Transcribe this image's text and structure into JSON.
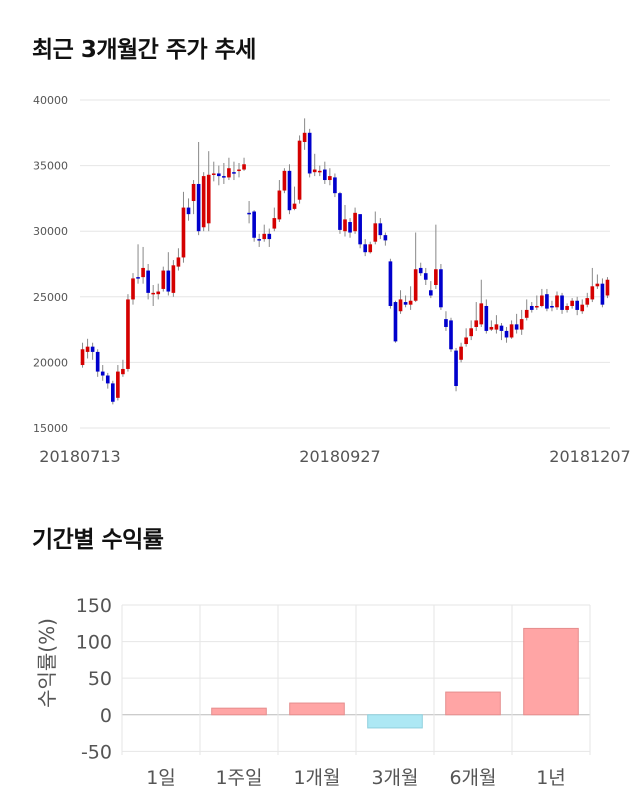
{
  "sections": {
    "price_title": "최근 3개월간 주가 추세",
    "returns_title": "기간별 수익률"
  },
  "chart_data": [
    {
      "type": "candlestick",
      "title": "최근 3개월간 주가 추세",
      "ylim": [
        15000,
        40000
      ],
      "y_ticks": [
        "40000",
        "35000",
        "30000",
        "25000",
        "20000",
        "15000"
      ],
      "x_ticks": [
        "20180713",
        "20180927",
        "20181207"
      ],
      "grid": true,
      "colors": {
        "up": "#d40000",
        "down": "#0000cc",
        "wick": "#888888"
      },
      "candles": [
        [
          19800,
          21000,
          21500,
          19600
        ],
        [
          20800,
          21200,
          21800,
          20300
        ],
        [
          21200,
          20800,
          21500,
          20200
        ],
        [
          20800,
          19300,
          21000,
          18900
        ],
        [
          19300,
          19000,
          19800,
          18600
        ],
        [
          19000,
          18400,
          19200,
          18000
        ],
        [
          18400,
          17000,
          18600,
          16800
        ],
        [
          17300,
          19300,
          19800,
          17100
        ],
        [
          19100,
          19500,
          20200,
          18900
        ],
        [
          19500,
          24800,
          25200,
          19300
        ],
        [
          24800,
          26400,
          26800,
          24400
        ],
        [
          26500,
          26400,
          29000,
          26000
        ],
        [
          26500,
          27200,
          28800,
          26000
        ],
        [
          27000,
          25300,
          27500,
          24800
        ],
        [
          25200,
          25300,
          25900,
          24300
        ],
        [
          25200,
          25400,
          26000,
          24800
        ],
        [
          25600,
          27000,
          27300,
          25400
        ],
        [
          27000,
          25400,
          28400,
          25100
        ],
        [
          25300,
          27400,
          27800,
          25000
        ],
        [
          27300,
          28000,
          28700,
          27000
        ],
        [
          28000,
          31800,
          33000,
          27600
        ],
        [
          31800,
          31300,
          32500,
          30800
        ],
        [
          32300,
          33600,
          33900,
          31300
        ],
        [
          33600,
          30000,
          36800,
          29700
        ],
        [
          30300,
          34200,
          34500,
          30000
        ],
        [
          30600,
          34300,
          36100,
          30000
        ],
        [
          34400,
          34400,
          35300,
          33800
        ],
        [
          34400,
          34200,
          35000,
          33500
        ],
        [
          34200,
          34100,
          35200,
          33600
        ],
        [
          34100,
          34800,
          35600,
          33900
        ],
        [
          34500,
          34400,
          35300,
          33900
        ],
        [
          34600,
          34700,
          35200,
          34100
        ],
        [
          34700,
          35100,
          35600,
          34600
        ],
        [
          31400,
          31300,
          32300,
          30600
        ],
        [
          31500,
          29500,
          31600,
          29200
        ],
        [
          29400,
          29300,
          29800,
          28800
        ],
        [
          29400,
          29800,
          30500,
          29200
        ],
        [
          29800,
          29400,
          30200,
          28800
        ],
        [
          30200,
          31000,
          31800,
          30000
        ],
        [
          30900,
          33100,
          33900,
          30700
        ],
        [
          33100,
          34600,
          34800,
          32900
        ],
        [
          34600,
          31600,
          35100,
          31300
        ],
        [
          31700,
          32100,
          33400,
          31600
        ],
        [
          32400,
          36900,
          37300,
          32100
        ],
        [
          36800,
          37500,
          38600,
          36200
        ],
        [
          37500,
          34400,
          37800,
          34100
        ],
        [
          34500,
          34700,
          35900,
          34200
        ],
        [
          34600,
          34600,
          35000,
          34200
        ],
        [
          34700,
          33900,
          35300,
          33600
        ],
        [
          33900,
          34200,
          34800,
          33500
        ],
        [
          34100,
          32900,
          34400,
          32600
        ],
        [
          32900,
          30100,
          33000,
          29800
        ],
        [
          30000,
          30900,
          32000,
          29600
        ],
        [
          30700,
          29900,
          31000,
          29500
        ],
        [
          30000,
          31400,
          31800,
          29800
        ],
        [
          31300,
          29000,
          31300,
          28700
        ],
        [
          29000,
          28400,
          29400,
          28100
        ],
        [
          28400,
          29000,
          29200,
          28300
        ],
        [
          29200,
          30600,
          31500,
          29000
        ],
        [
          30600,
          29700,
          31000,
          29400
        ],
        [
          29700,
          29300,
          29900,
          28900
        ],
        [
          27700,
          24300,
          27900,
          24100
        ],
        [
          24600,
          21600,
          24700,
          21500
        ],
        [
          23900,
          24800,
          25500,
          23700
        ],
        [
          24600,
          24400,
          25100,
          24200
        ],
        [
          24400,
          24700,
          25800,
          24000
        ],
        [
          24700,
          27100,
          29900,
          24600
        ],
        [
          27200,
          26800,
          27600,
          26600
        ],
        [
          26800,
          26300,
          27200,
          25900
        ],
        [
          25500,
          25100,
          26200,
          24900
        ],
        [
          25900,
          27100,
          30500,
          25600
        ],
        [
          27100,
          24200,
          27500,
          24000
        ],
        [
          23300,
          22700,
          23900,
          22400
        ],
        [
          23200,
          21000,
          23400,
          20800
        ],
        [
          20900,
          18200,
          21100,
          17800
        ],
        [
          20200,
          21200,
          21500,
          20000
        ],
        [
          21400,
          21900,
          22600,
          21200
        ],
        [
          22000,
          22600,
          23200,
          21700
        ],
        [
          22700,
          23200,
          24600,
          22400
        ],
        [
          22900,
          24500,
          26300,
          22700
        ],
        [
          24300,
          22400,
          24800,
          22200
        ],
        [
          22500,
          22700,
          23200,
          22400
        ],
        [
          22500,
          22900,
          23600,
          22200
        ],
        [
          22800,
          22400,
          23000,
          21700
        ],
        [
          22400,
          21900,
          22700,
          21500
        ],
        [
          21900,
          22900,
          23200,
          21800
        ],
        [
          22900,
          22500,
          23700,
          22200
        ],
        [
          22500,
          23300,
          24000,
          22100
        ],
        [
          23400,
          24000,
          24800,
          23200
        ],
        [
          24300,
          24000,
          24600,
          23800
        ],
        [
          24200,
          24300,
          25100,
          24000
        ],
        [
          24300,
          25100,
          25600,
          24200
        ],
        [
          25200,
          24100,
          25600,
          23900
        ],
        [
          24300,
          24200,
          24700,
          23900
        ],
        [
          24200,
          25100,
          25400,
          24000
        ],
        [
          25100,
          24000,
          25300,
          23700
        ],
        [
          24000,
          24300,
          24500,
          23800
        ],
        [
          24300,
          24700,
          24900,
          24100
        ],
        [
          24700,
          24000,
          25000,
          23600
        ],
        [
          23900,
          24400,
          24800,
          23700
        ],
        [
          24400,
          24900,
          25300,
          24200
        ],
        [
          24800,
          25800,
          27200,
          24600
        ],
        [
          25800,
          26000,
          26700,
          25600
        ],
        [
          26000,
          24400,
          26400,
          24200
        ],
        [
          25100,
          26300,
          26500,
          24900
        ]
      ]
    },
    {
      "type": "bar",
      "ylabel": "수익률(%)",
      "ylim": [
        -55,
        150
      ],
      "y_ticks": [
        "150",
        "100",
        "50",
        "0",
        "-50"
      ],
      "categories": [
        "1일",
        "1주일",
        "1개월",
        "3개월",
        "6개월",
        "1년"
      ],
      "values": [
        0,
        9,
        16,
        -18,
        31,
        118
      ],
      "colors": {
        "positive": "#ffa5a5",
        "negative": "#ade8f4"
      }
    }
  ]
}
